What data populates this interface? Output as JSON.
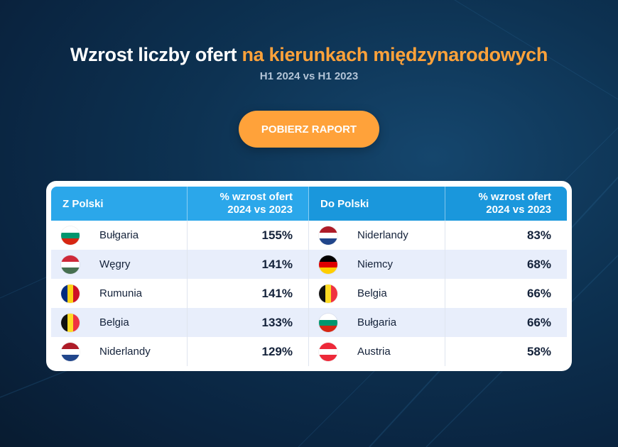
{
  "header": {
    "title_main": "Wzrost liczby ofert",
    "title_accent": "na kierunkach międzynarodowych",
    "subtitle": "H1 2024 vs H1 2023"
  },
  "cta": {
    "label": "POBIERZ RAPORT"
  },
  "colors": {
    "accent": "#ffa23a",
    "header_left": "#2ba7ea",
    "header_right": "#1a97dc",
    "row_alt": "#e8eefb"
  },
  "table": {
    "left": {
      "header_col1": "Z Polski",
      "header_col2_line1": "% wzrost ofert",
      "header_col2_line2": "2024 vs 2023",
      "rows": [
        {
          "country": "Bułgaria",
          "value": "155%",
          "flag": "bulgaria-flag-icon"
        },
        {
          "country": "Węgry",
          "value": "141%",
          "flag": "hungary-flag-icon"
        },
        {
          "country": "Rumunia",
          "value": "141%",
          "flag": "romania-flag-icon"
        },
        {
          "country": "Belgia",
          "value": "133%",
          "flag": "belgium-flag-icon"
        },
        {
          "country": "Niderlandy",
          "value": "129%",
          "flag": "netherlands-flag-icon"
        }
      ]
    },
    "right": {
      "header_col1": "Do Polski",
      "header_col2_line1": "% wzrost ofert",
      "header_col2_line2": "2024 vs 2023",
      "rows": [
        {
          "country": "Niderlandy",
          "value": "83%",
          "flag": "netherlands-flag-icon"
        },
        {
          "country": "Niemcy",
          "value": "68%",
          "flag": "germany-flag-icon"
        },
        {
          "country": "Belgia",
          "value": "66%",
          "flag": "belgium-flag-icon"
        },
        {
          "country": "Bułgaria",
          "value": "66%",
          "flag": "bulgaria-flag-icon"
        },
        {
          "country": "Austria",
          "value": "58%",
          "flag": "austria-flag-icon"
        }
      ]
    }
  }
}
